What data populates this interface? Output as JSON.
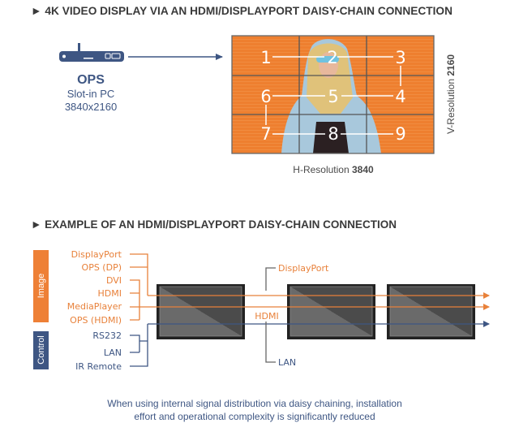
{
  "section1": {
    "heading": "► 4K VIDEO DISPLAY VIA AN HDMI/DISPLAYPORT DAISY-CHAIN CONNECTION",
    "source": {
      "icon": "ops-slot-in-pc-icon",
      "title": "OPS",
      "subtitle": "Slot-in PC",
      "resolution": "3840x2160"
    },
    "wall_tiles": [
      "1",
      "2",
      "3",
      "4",
      "5",
      "6",
      "7",
      "8",
      "9"
    ],
    "h_resolution_label": "H-Resolution",
    "h_resolution_value": "3840",
    "v_resolution_label": "V-Resolution",
    "v_resolution_value": "2160"
  },
  "section2": {
    "heading": "► EXAMPLE OF AN HDMI/DISPLAYPORT DAISY-CHAIN CONNECTION",
    "image_group_label": "Image",
    "control_group_label": "Control",
    "image_inputs": [
      "DisplayPort",
      "OPS (DP)",
      "DVI",
      "HDMI",
      "MediaPlayer",
      "OPS (HDMI)"
    ],
    "control_inputs": [
      "RS232",
      "LAN",
      "IR Remote"
    ],
    "chain_labels": {
      "top": "DisplayPort",
      "middle": "HDMI",
      "bottom": "LAN"
    },
    "footer_line1": "When using internal signal distribution via daisy chaining, installation",
    "footer_line2": "effort and operational complexity is significantly reduced"
  },
  "colors": {
    "orange": "#e8813a",
    "blue": "#3e5683",
    "gray": "#555555",
    "text": "#3a3a3a"
  }
}
